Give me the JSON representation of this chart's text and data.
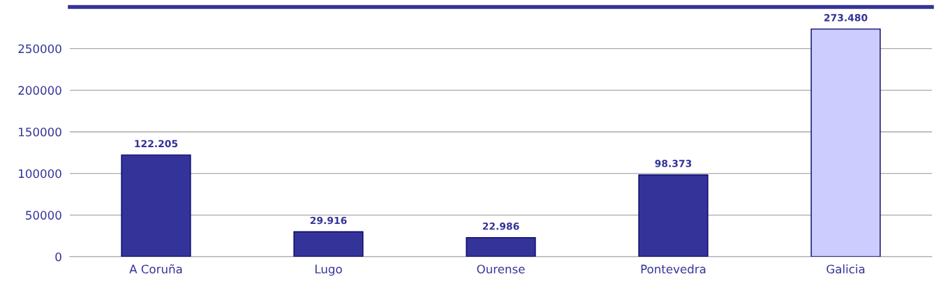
{
  "chart_data": {
    "type": "bar",
    "categories": [
      "A Coruña",
      "Lugo",
      "Ourense",
      "Pontevedra",
      "Galicia"
    ],
    "values": [
      122205,
      29916,
      22986,
      98373,
      273480
    ],
    "colors": [
      "#333399",
      "#333399",
      "#333399",
      "#333399",
      "#ccccff"
    ],
    "value_labels": [
      "122.205",
      "29.916",
      "22.986",
      "98.373",
      "273.480"
    ],
    "ylim": [
      0,
      300000
    ],
    "yticks": [
      0,
      50000,
      100000,
      150000,
      200000,
      250000
    ],
    "grid": "y"
  }
}
